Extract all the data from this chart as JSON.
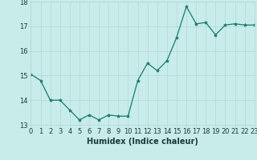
{
  "x": [
    0,
    1,
    2,
    3,
    4,
    5,
    6,
    7,
    8,
    9,
    10,
    11,
    12,
    13,
    14,
    15,
    16,
    17,
    18,
    19,
    20,
    21,
    22,
    23
  ],
  "y": [
    15.05,
    14.8,
    14.0,
    14.0,
    13.6,
    13.2,
    13.4,
    13.2,
    13.4,
    13.35,
    13.35,
    14.8,
    15.5,
    15.2,
    15.6,
    16.55,
    17.8,
    17.1,
    17.15,
    16.65,
    17.05,
    17.1,
    17.05,
    17.05
  ],
  "xlabel": "Humidex (Indice chaleur)",
  "ylim": [
    13,
    18
  ],
  "xlim": [
    0,
    23
  ],
  "yticks": [
    13,
    14,
    15,
    16,
    17,
    18
  ],
  "xticks": [
    0,
    1,
    2,
    3,
    4,
    5,
    6,
    7,
    8,
    9,
    10,
    11,
    12,
    13,
    14,
    15,
    16,
    17,
    18,
    19,
    20,
    21,
    22,
    23
  ],
  "line_color": "#1a7a6e",
  "marker_color": "#1a7a6e",
  "bg_color": "#c8ecea",
  "grid_color": "#b0d8d5",
  "axis_bg": "#c8ecea",
  "tick_color": "#1a3a3a",
  "xlabel_color": "#1a3a3a",
  "xlabel_fontsize": 7,
  "tick_fontsize": 6
}
